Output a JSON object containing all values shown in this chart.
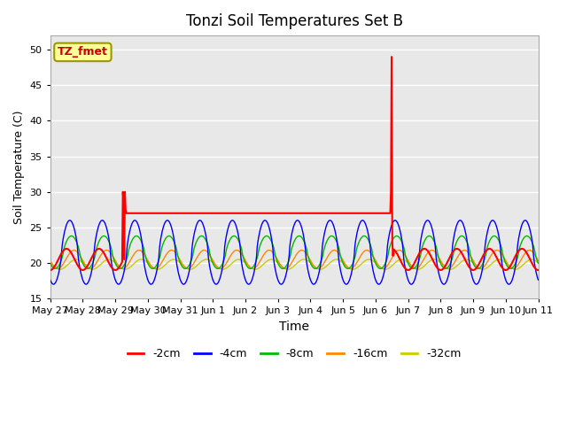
{
  "title": "Tonzi Soil Temperatures Set B",
  "xlabel": "Time",
  "ylabel": "Soil Temperature (C)",
  "ylim": [
    15,
    52
  ],
  "yticks": [
    15,
    20,
    25,
    30,
    35,
    40,
    45,
    50
  ],
  "plot_bg": "#e8e8e8",
  "fig_bg": "#ffffff",
  "legend_entries": [
    "-2cm",
    "-4cm",
    "-8cm",
    "-16cm",
    "-32cm"
  ],
  "legend_colors": [
    "#ff0000",
    "#0000ff",
    "#00bb00",
    "#ff8800",
    "#cccc00"
  ],
  "annotation_text": "TZ_fmet",
  "annotation_color": "#cc0000",
  "annotation_bg": "#ffff99",
  "annotation_edge": "#999900",
  "n_days": 15,
  "x_tick_labels": [
    "May 27",
    "May 28",
    "May 29",
    "May 30",
    "May 31",
    "Jun 1",
    "Jun 2",
    "Jun 3",
    "Jun 4",
    "Jun 5",
    "Jun 6",
    "Jun 7",
    "Jun 8",
    "Jun 9",
    "Jun 10",
    "Jun 11"
  ]
}
